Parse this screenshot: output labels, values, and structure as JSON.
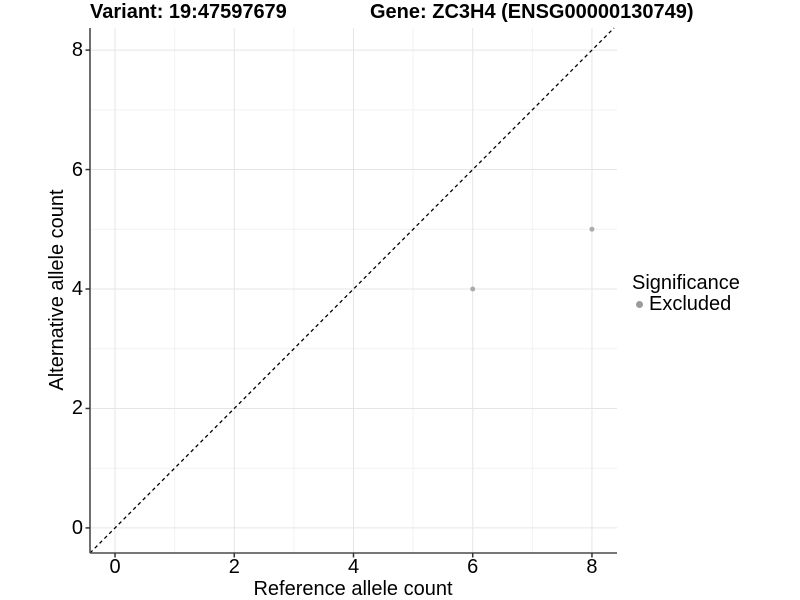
{
  "chart_data": {
    "type": "scatter",
    "titles": {
      "variant": "Variant: 19:47597679",
      "gene": "Gene: ZC3H4 (ENSG00000130749)"
    },
    "axes": {
      "x": {
        "label": "Reference allele count",
        "ticks": [
          0,
          2,
          4,
          6,
          8
        ],
        "range": [
          -0.42,
          8.42
        ]
      },
      "y": {
        "label": "Alternative allele count",
        "ticks": [
          0,
          2,
          4,
          6,
          8
        ],
        "range": [
          -0.42,
          8.37
        ]
      }
    },
    "grid": {
      "major": true,
      "minor": true
    },
    "reference_line": {
      "style": "dashed",
      "equation": "y = x"
    },
    "series": [
      {
        "name": "Excluded",
        "color": "#ababab",
        "points": [
          {
            "x": 6,
            "y": 4
          },
          {
            "x": 8,
            "y": 5
          }
        ]
      }
    ],
    "legend": {
      "title": "Significance",
      "position": "right",
      "entries": [
        {
          "label": "Excluded",
          "color": "#9b9b9b"
        }
      ]
    }
  },
  "colors": {
    "background": "#ffffff",
    "axis_line": "#4a4a4a",
    "tick_mark": "#333333",
    "major_grid": "#e5e5e5",
    "minor_grid": "#f2f2f2",
    "dashed_line": "#000000",
    "point": "#ababab"
  }
}
